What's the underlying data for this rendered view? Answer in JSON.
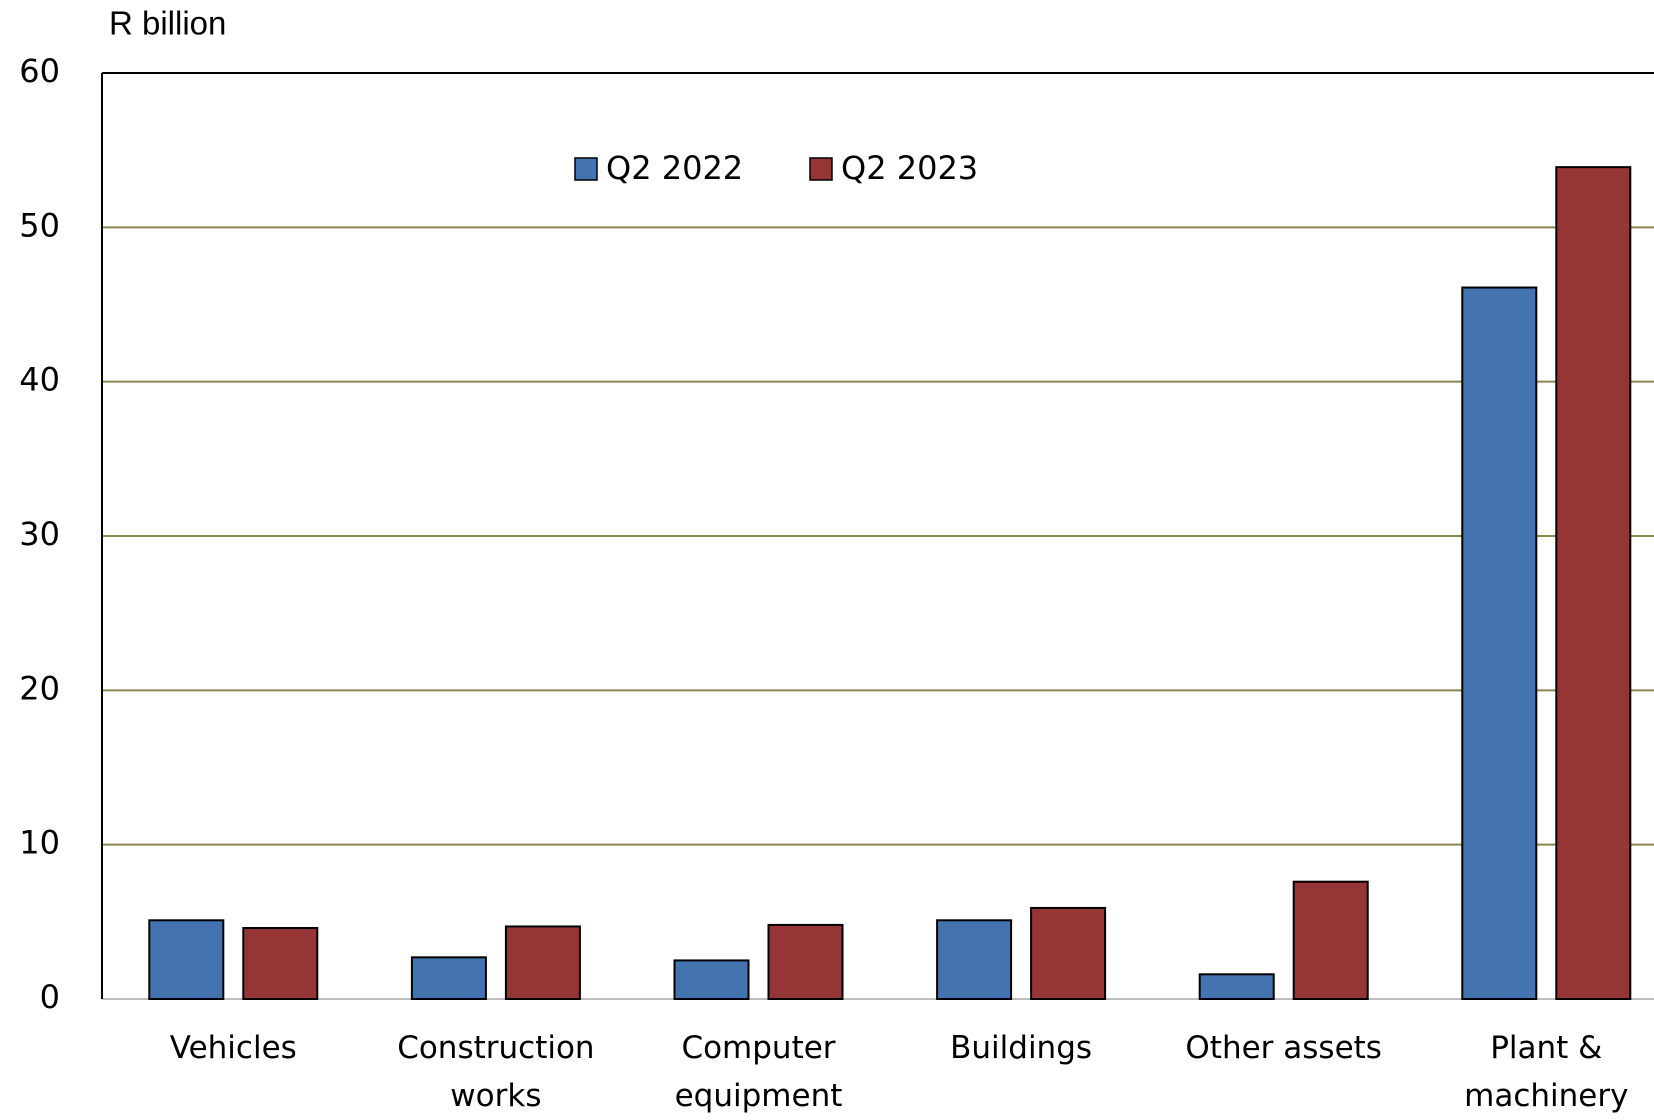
{
  "chart_data": {
    "type": "bar",
    "y_axis_label": "R billion",
    "categories": [
      "Vehicles",
      "Construction works",
      "Computer equipment",
      "Buildings",
      "Other assets",
      "Plant & machinery"
    ],
    "series": [
      {
        "name": "Q2 2022",
        "color": "#4474b0",
        "values": [
          5.1,
          2.7,
          2.5,
          5.1,
          1.6,
          46.1
        ]
      },
      {
        "name": "Q2 2023",
        "color": "#963535",
        "values": [
          4.6,
          4.7,
          4.8,
          5.9,
          7.6,
          53.9
        ]
      }
    ],
    "ylim": [
      0,
      60
    ],
    "yticks": [
      0,
      10,
      20,
      30,
      40,
      50,
      60
    ],
    "grid": true,
    "legend": "top"
  }
}
